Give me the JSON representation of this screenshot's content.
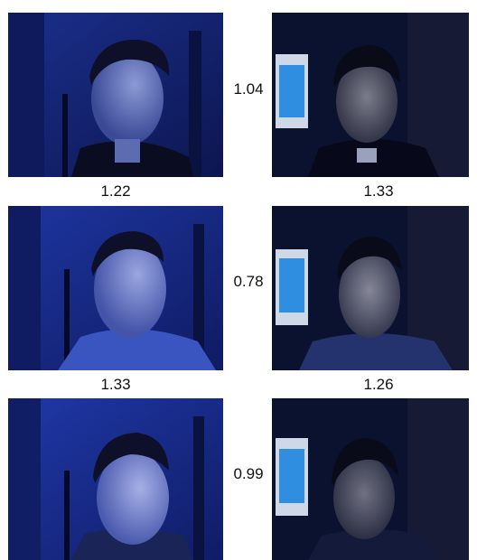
{
  "rows": [
    {
      "pair_ratio": "1.04",
      "left_caption": "1.22",
      "right_caption": "1.33",
      "left_photo": "subject-1-side-lit-face-photo",
      "right_photo": "subject-1-front-lit-face-photo"
    },
    {
      "pair_ratio": "0.78",
      "left_caption": "1.33",
      "right_caption": "1.26",
      "left_photo": "subject-2-side-lit-face-photo",
      "right_photo": "subject-2-front-lit-face-photo"
    },
    {
      "pair_ratio": "0.99",
      "left_caption": "",
      "right_caption": "",
      "left_photo": "subject-3-side-lit-face-photo",
      "right_photo": "subject-3-front-lit-face-photo"
    }
  ],
  "colors": {
    "left_background": "#1f3aa8",
    "right_background": "#0b1230",
    "monitor_screen": "#2f8ee0"
  }
}
